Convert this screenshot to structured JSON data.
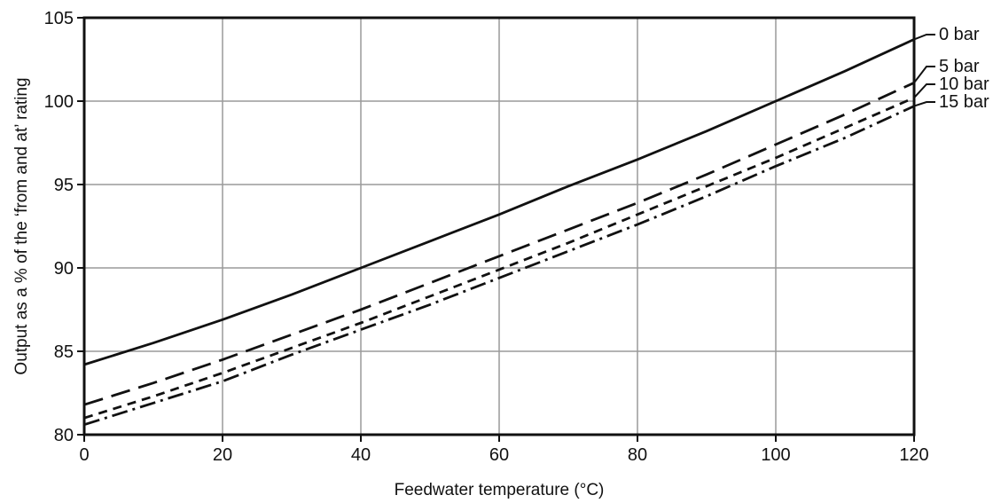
{
  "chart_data": {
    "type": "line",
    "title": "",
    "xlabel": "Feedwater temperature (°C)",
    "ylabel": "Output as a % of the ‘from and at’ rating",
    "xlim": [
      0,
      120
    ],
    "ylim": [
      80,
      105
    ],
    "xticks": [
      0,
      20,
      40,
      60,
      80,
      100,
      120
    ],
    "yticks": [
      80,
      85,
      90,
      95,
      100,
      105
    ],
    "x_tick_labels": [
      "0",
      "20",
      "40",
      "60",
      "80",
      "100",
      "120"
    ],
    "y_tick_labels": [
      "80",
      "85",
      "90",
      "95",
      "100",
      "105"
    ],
    "grid": true,
    "legend": "right-end labels",
    "series": [
      {
        "name": "0 bar",
        "style": "solid",
        "x": [
          0,
          10,
          20,
          30,
          40,
          50,
          60,
          70,
          80,
          90,
          100,
          110,
          120
        ],
        "y": [
          84.2,
          85.5,
          86.9,
          88.4,
          90.0,
          91.6,
          93.2,
          94.9,
          96.5,
          98.2,
          100.0,
          101.8,
          103.7
        ]
      },
      {
        "name": "5 bar",
        "style": "long-dash",
        "x": [
          0,
          10,
          20,
          30,
          40,
          50,
          60,
          70,
          80,
          90,
          100,
          110,
          120
        ],
        "y": [
          81.8,
          83.1,
          84.5,
          86.0,
          87.5,
          89.1,
          90.7,
          92.3,
          93.9,
          95.6,
          97.4,
          99.2,
          101.1
        ]
      },
      {
        "name": "10 bar",
        "style": "short-dash",
        "x": [
          0,
          10,
          20,
          30,
          40,
          50,
          60,
          70,
          80,
          90,
          100,
          110,
          120
        ],
        "y": [
          81.0,
          82.3,
          83.7,
          85.2,
          86.7,
          88.3,
          89.9,
          91.5,
          93.2,
          94.9,
          96.6,
          98.4,
          100.2
        ]
      },
      {
        "name": "15 bar",
        "style": "dash-dot",
        "x": [
          0,
          10,
          20,
          30,
          40,
          50,
          60,
          70,
          80,
          90,
          100,
          110,
          120
        ],
        "y": [
          80.6,
          81.9,
          83.2,
          84.8,
          86.3,
          87.8,
          89.4,
          91.0,
          92.6,
          94.3,
          96.1,
          97.8,
          99.7
        ]
      }
    ]
  }
}
